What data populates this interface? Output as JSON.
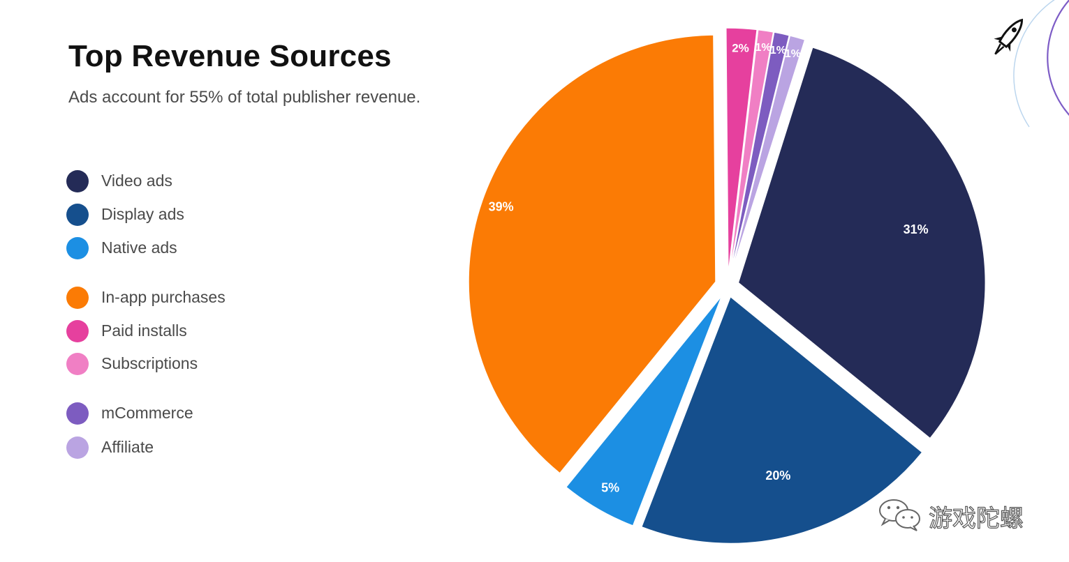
{
  "title": "Top Revenue Sources",
  "subtitle": "Ads account for 55% of total publisher revenue.",
  "watermark": {
    "icon": "wechat-icon",
    "text": "游戏陀螺"
  },
  "badge": {
    "icon": "rocket-icon",
    "accent": "#7d5cc6"
  },
  "legend": [
    {
      "label": "Video ads",
      "color": "#242b57"
    },
    {
      "label": "Display ads",
      "color": "#154f8d"
    },
    {
      "label": "Native ads",
      "color": "#1c8fe3"
    },
    {
      "label": "In-app purchases",
      "color": "#fb7b05"
    },
    {
      "label": "Paid installs",
      "color": "#e6409e"
    },
    {
      "label": "Subscriptions",
      "color": "#f07fc4"
    },
    {
      "label": "mCommerce",
      "color": "#7d5cc0"
    },
    {
      "label": "Affiliate",
      "color": "#baa4e2"
    }
  ],
  "chart_data": {
    "type": "pie",
    "title": "Top Revenue Sources",
    "subtitle": "Ads account for 55% of total publisher revenue.",
    "legend_position": "left",
    "exploded": true,
    "slices": [
      {
        "label": "Video ads",
        "value": 31,
        "display": "31%",
        "color": "#242b57"
      },
      {
        "label": "Display ads",
        "value": 20,
        "display": "20%",
        "color": "#154f8d"
      },
      {
        "label": "Native ads",
        "value": 5,
        "display": "5%",
        "color": "#1c8fe3"
      },
      {
        "label": "In-app purchases",
        "value": 39,
        "display": "39%",
        "color": "#fb7b05"
      },
      {
        "label": "Paid installs",
        "value": 2,
        "display": "2%",
        "color": "#e6409e"
      },
      {
        "label": "Subscriptions",
        "value": 1,
        "display": "1%",
        "color": "#f07fc4"
      },
      {
        "label": "mCommerce",
        "value": 1,
        "display": "1%",
        "color": "#7d5cc0"
      },
      {
        "label": "Affiliate",
        "value": 1,
        "display": "1%",
        "color": "#baa4e2"
      }
    ]
  }
}
